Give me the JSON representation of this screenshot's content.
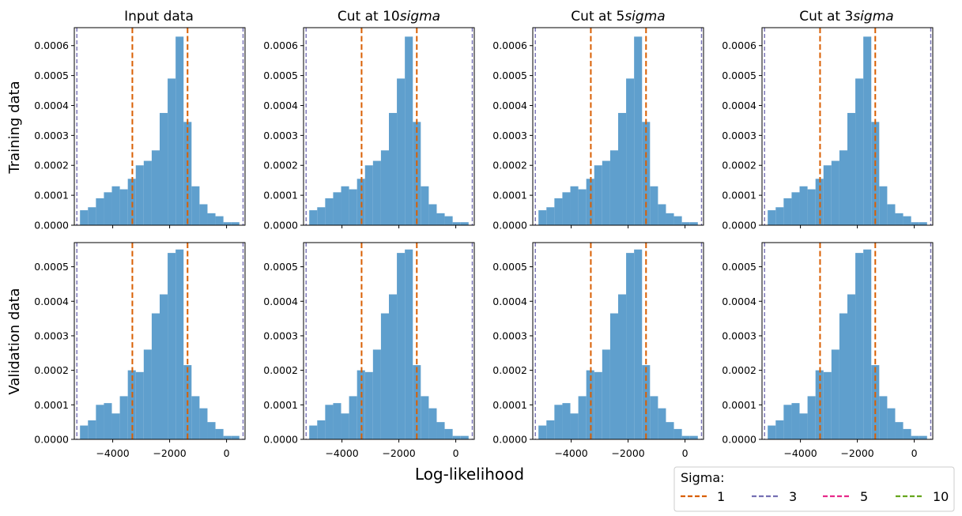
{
  "figure": {
    "xlabel": "Log-likelihood",
    "row_labels": [
      "Training data",
      "Validation data"
    ],
    "column_titles": [
      "Input data",
      "Cut at 10$sigma$",
      "Cut at 5$sigma$",
      "Cut at 3$sigma$"
    ],
    "column_title_parts": [
      {
        "plain": "Input data",
        "italic": ""
      },
      {
        "plain": "Cut at 10",
        "italic": "sigma"
      },
      {
        "plain": "Cut at 5",
        "italic": "sigma"
      },
      {
        "plain": "Cut at 3",
        "italic": "sigma"
      }
    ]
  },
  "legend": {
    "title": "Sigma:",
    "placement": "bottom-right",
    "entries": [
      {
        "label": "1",
        "color": "#d95f02"
      },
      {
        "label": "3",
        "color": "#7570b3"
      },
      {
        "label": "5",
        "color": "#e7298a"
      },
      {
        "label": "10",
        "color": "#66a61e"
      }
    ]
  },
  "colors": {
    "bars": "#5f9fcd",
    "sigma1": "#d95f02",
    "sigma3": "#7570b3"
  },
  "chart_data": [
    {
      "type": "histogram",
      "title": "Input data",
      "ylabel": "Training data",
      "xlim": [
        -5350,
        650
      ],
      "ylim": [
        0,
        0.00066
      ],
      "xticks": [
        -4000,
        -2000,
        0
      ],
      "yticks": [
        0.0,
        0.0001,
        0.0002,
        0.0003,
        0.0004,
        0.0005,
        0.0006
      ],
      "ytick_labels": [
        "0.0000",
        "0.0001",
        "0.0002",
        "0.0003",
        "0.0004",
        "0.0005",
        "0.0006"
      ],
      "bin_edges": [
        -5150,
        -4870,
        -4590,
        -4310,
        -4030,
        -3750,
        -3470,
        -3190,
        -2910,
        -2630,
        -2350,
        -2070,
        -1790,
        -1510,
        -1230,
        -950,
        -670,
        -390,
        -110,
        170,
        450
      ],
      "values": [
        5e-05,
        6e-05,
        9e-05,
        0.00011,
        0.00013,
        0.00012,
        0.000155,
        0.0002,
        0.000215,
        0.00025,
        0.000375,
        0.00049,
        0.00063,
        0.000345,
        0.00013,
        7e-05,
        4e-05,
        3e-05,
        1e-05,
        1e-05
      ],
      "vlines": {
        "sigma1": [
          -3310,
          -1370
        ],
        "sigma3": [
          -5260,
          580
        ]
      }
    },
    {
      "type": "histogram",
      "title": "Cut at 10$sigma$",
      "ylabel": "Training data",
      "xlim": [
        -5350,
        650
      ],
      "ylim": [
        0,
        0.00066
      ],
      "xticks": [
        -4000,
        -2000,
        0
      ],
      "yticks": [
        0.0,
        0.0001,
        0.0002,
        0.0003,
        0.0004,
        0.0005,
        0.0006
      ],
      "ytick_labels": [
        "0.0000",
        "0.0001",
        "0.0002",
        "0.0003",
        "0.0004",
        "0.0005",
        "0.0006"
      ],
      "bin_edges": [
        -5150,
        -4870,
        -4590,
        -4310,
        -4030,
        -3750,
        -3470,
        -3190,
        -2910,
        -2630,
        -2350,
        -2070,
        -1790,
        -1510,
        -1230,
        -950,
        -670,
        -390,
        -110,
        170,
        450
      ],
      "values": [
        5e-05,
        6e-05,
        9e-05,
        0.00011,
        0.00013,
        0.00012,
        0.000155,
        0.0002,
        0.000215,
        0.00025,
        0.000375,
        0.00049,
        0.00063,
        0.000345,
        0.00013,
        7e-05,
        4e-05,
        3e-05,
        1e-05,
        1e-05
      ],
      "vlines": {
        "sigma1": [
          -3310,
          -1370
        ],
        "sigma3": [
          -5260,
          580
        ]
      }
    },
    {
      "type": "histogram",
      "title": "Cut at 5$sigma$",
      "ylabel": "Training data",
      "xlim": [
        -5350,
        650
      ],
      "ylim": [
        0,
        0.00066
      ],
      "xticks": [
        -4000,
        -2000,
        0
      ],
      "yticks": [
        0.0,
        0.0001,
        0.0002,
        0.0003,
        0.0004,
        0.0005,
        0.0006
      ],
      "ytick_labels": [
        "0.0000",
        "0.0001",
        "0.0002",
        "0.0003",
        "0.0004",
        "0.0005",
        "0.0006"
      ],
      "bin_edges": [
        -5150,
        -4870,
        -4590,
        -4310,
        -4030,
        -3750,
        -3470,
        -3190,
        -2910,
        -2630,
        -2350,
        -2070,
        -1790,
        -1510,
        -1230,
        -950,
        -670,
        -390,
        -110,
        170,
        450
      ],
      "values": [
        5e-05,
        6e-05,
        9e-05,
        0.00011,
        0.00013,
        0.00012,
        0.000155,
        0.0002,
        0.000215,
        0.00025,
        0.000375,
        0.00049,
        0.00063,
        0.000345,
        0.00013,
        7e-05,
        4e-05,
        3e-05,
        1e-05,
        1e-05
      ],
      "vlines": {
        "sigma1": [
          -3310,
          -1370
        ],
        "sigma3": [
          -5260,
          580
        ]
      }
    },
    {
      "type": "histogram",
      "title": "Cut at 3$sigma$",
      "ylabel": "Training data",
      "xlim": [
        -5350,
        650
      ],
      "ylim": [
        0,
        0.00066
      ],
      "xticks": [
        -4000,
        -2000,
        0
      ],
      "yticks": [
        0.0,
        0.0001,
        0.0002,
        0.0003,
        0.0004,
        0.0005,
        0.0006
      ],
      "ytick_labels": [
        "0.0000",
        "0.0001",
        "0.0002",
        "0.0003",
        "0.0004",
        "0.0005",
        "0.0006"
      ],
      "bin_edges": [
        -5150,
        -4870,
        -4590,
        -4310,
        -4030,
        -3750,
        -3470,
        -3190,
        -2910,
        -2630,
        -2350,
        -2070,
        -1790,
        -1510,
        -1230,
        -950,
        -670,
        -390,
        -110,
        170,
        450
      ],
      "values": [
        5e-05,
        6e-05,
        9e-05,
        0.00011,
        0.00013,
        0.00012,
        0.000155,
        0.0002,
        0.000215,
        0.00025,
        0.000375,
        0.00049,
        0.00063,
        0.000345,
        0.00013,
        7e-05,
        4e-05,
        3e-05,
        1e-05,
        1e-05
      ],
      "vlines": {
        "sigma1": [
          -3310,
          -1370
        ],
        "sigma3": [
          -5260,
          580
        ]
      }
    },
    {
      "type": "histogram",
      "title": "Input data",
      "ylabel": "Validation data",
      "xlabel": "Log-likelihood",
      "xlim": [
        -5350,
        650
      ],
      "ylim": [
        0,
        0.00057
      ],
      "xticks": [
        -4000,
        -2000,
        0
      ],
      "xtick_labels": [
        "−4000",
        "−2000",
        "0"
      ],
      "yticks": [
        0.0,
        0.0001,
        0.0002,
        0.0003,
        0.0004,
        0.0005
      ],
      "ytick_labels": [
        "0.0000",
        "0.0001",
        "0.0002",
        "0.0003",
        "0.0004",
        "0.0005"
      ],
      "bin_edges": [
        -5150,
        -4870,
        -4590,
        -4310,
        -4030,
        -3750,
        -3470,
        -3190,
        -2910,
        -2630,
        -2350,
        -2070,
        -1790,
        -1510,
        -1230,
        -950,
        -670,
        -390,
        -110,
        170,
        450
      ],
      "values": [
        4e-05,
        5.5e-05,
        0.0001,
        0.000105,
        7.5e-05,
        0.000125,
        0.0002,
        0.000195,
        0.00026,
        0.000365,
        0.00042,
        0.00054,
        0.00055,
        0.000215,
        0.000125,
        9e-05,
        5e-05,
        3e-05,
        1e-05,
        1e-05
      ],
      "vlines": {
        "sigma1": [
          -3310,
          -1370
        ],
        "sigma3": [
          -5260,
          580
        ]
      }
    },
    {
      "type": "histogram",
      "title": "Cut at 10$sigma$",
      "ylabel": "Validation data",
      "xlabel": "Log-likelihood",
      "xlim": [
        -5350,
        650
      ],
      "ylim": [
        0,
        0.00057
      ],
      "xticks": [
        -4000,
        -2000,
        0
      ],
      "xtick_labels": [
        "−4000",
        "−2000",
        "0"
      ],
      "yticks": [
        0.0,
        0.0001,
        0.0002,
        0.0003,
        0.0004,
        0.0005
      ],
      "ytick_labels": [
        "0.0000",
        "0.0001",
        "0.0002",
        "0.0003",
        "0.0004",
        "0.0005"
      ],
      "bin_edges": [
        -5150,
        -4870,
        -4590,
        -4310,
        -4030,
        -3750,
        -3470,
        -3190,
        -2910,
        -2630,
        -2350,
        -2070,
        -1790,
        -1510,
        -1230,
        -950,
        -670,
        -390,
        -110,
        170,
        450
      ],
      "values": [
        4e-05,
        5.5e-05,
        0.0001,
        0.000105,
        7.5e-05,
        0.000125,
        0.0002,
        0.000195,
        0.00026,
        0.000365,
        0.00042,
        0.00054,
        0.00055,
        0.000215,
        0.000125,
        9e-05,
        5e-05,
        3e-05,
        1e-05,
        1e-05
      ],
      "vlines": {
        "sigma1": [
          -3310,
          -1370
        ],
        "sigma3": [
          -5260,
          580
        ]
      }
    },
    {
      "type": "histogram",
      "title": "Cut at 5$sigma$",
      "ylabel": "Validation data",
      "xlabel": "Log-likelihood",
      "xlim": [
        -5350,
        650
      ],
      "ylim": [
        0,
        0.00057
      ],
      "xticks": [
        -4000,
        -2000,
        0
      ],
      "xtick_labels": [
        "−4000",
        "−2000",
        "0"
      ],
      "yticks": [
        0.0,
        0.0001,
        0.0002,
        0.0003,
        0.0004,
        0.0005
      ],
      "ytick_labels": [
        "0.0000",
        "0.0001",
        "0.0002",
        "0.0003",
        "0.0004",
        "0.0005"
      ],
      "bin_edges": [
        -5150,
        -4870,
        -4590,
        -4310,
        -4030,
        -3750,
        -3470,
        -3190,
        -2910,
        -2630,
        -2350,
        -2070,
        -1790,
        -1510,
        -1230,
        -950,
        -670,
        -390,
        -110,
        170,
        450
      ],
      "values": [
        4e-05,
        5.5e-05,
        0.0001,
        0.000105,
        7.5e-05,
        0.000125,
        0.0002,
        0.000195,
        0.00026,
        0.000365,
        0.00042,
        0.00054,
        0.00055,
        0.000215,
        0.000125,
        9e-05,
        5e-05,
        3e-05,
        1e-05,
        1e-05
      ],
      "vlines": {
        "sigma1": [
          -3310,
          -1370
        ],
        "sigma3": [
          -5260,
          580
        ]
      }
    },
    {
      "type": "histogram",
      "title": "Cut at 3$sigma$",
      "ylabel": "Validation data",
      "xlabel": "Log-likelihood",
      "xlim": [
        -5350,
        650
      ],
      "ylim": [
        0,
        0.00057
      ],
      "xticks": [
        -4000,
        -2000,
        0
      ],
      "xtick_labels": [
        "−4000",
        "−2000",
        "0"
      ],
      "yticks": [
        0.0,
        0.0001,
        0.0002,
        0.0003,
        0.0004,
        0.0005
      ],
      "ytick_labels": [
        "0.0000",
        "0.0001",
        "0.0002",
        "0.0003",
        "0.0004",
        "0.0005"
      ],
      "bin_edges": [
        -5150,
        -4870,
        -4590,
        -4310,
        -4030,
        -3750,
        -3470,
        -3190,
        -2910,
        -2630,
        -2350,
        -2070,
        -1790,
        -1510,
        -1230,
        -950,
        -670,
        -390,
        -110,
        170,
        450
      ],
      "values": [
        4e-05,
        5.5e-05,
        0.0001,
        0.000105,
        7.5e-05,
        0.000125,
        0.0002,
        0.000195,
        0.00026,
        0.000365,
        0.00042,
        0.00054,
        0.00055,
        0.000215,
        0.000125,
        9e-05,
        5e-05,
        3e-05,
        1e-05,
        1e-05
      ],
      "vlines": {
        "sigma1": [
          -3310,
          -1370
        ],
        "sigma3": [
          -5260,
          580
        ]
      }
    }
  ]
}
